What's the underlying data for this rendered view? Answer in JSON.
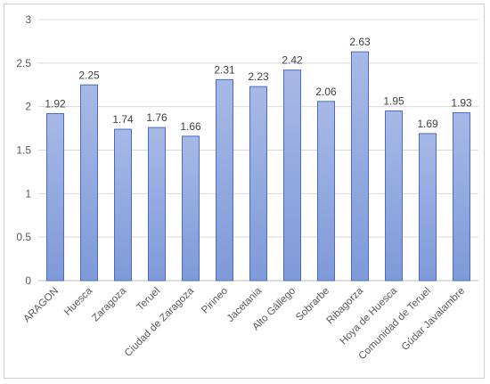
{
  "chart_data": {
    "type": "bar",
    "categories": [
      "ARAGON",
      "Huesca",
      "Zaragoza",
      "Teruel",
      "Ciudad de Zaragoza",
      "Pirineo",
      "Jacetania",
      "Alto Gállego",
      "Sobrarbe",
      "Ribagorza",
      "Hoya de Huesca",
      "Comunidad de Teruel",
      "Gúdar Javalambre"
    ],
    "values": [
      1.92,
      2.25,
      1.74,
      1.76,
      1.66,
      2.31,
      2.23,
      2.42,
      2.06,
      2.63,
      1.95,
      1.69,
      1.93
    ],
    "data_labels": [
      "1.92",
      "2.25",
      "1.74",
      "1.76",
      "1.66",
      "2.31",
      "2.23",
      "2.42",
      "2.06",
      "2.63",
      "1.95",
      "1.69",
      "1.93"
    ],
    "yticks": [
      "0",
      "0.5",
      "1",
      "1.5",
      "2",
      "2.5",
      "3"
    ],
    "ylim": [
      0,
      3
    ],
    "grid": true,
    "legend": "none",
    "colors": {
      "bar_fill_top": "#a7b9e6",
      "bar_fill_bottom": "#7f9ad8",
      "bar_stroke": "#4a6cc2",
      "grid": "#d9d9d9",
      "axis": "#bfbfbf"
    }
  }
}
